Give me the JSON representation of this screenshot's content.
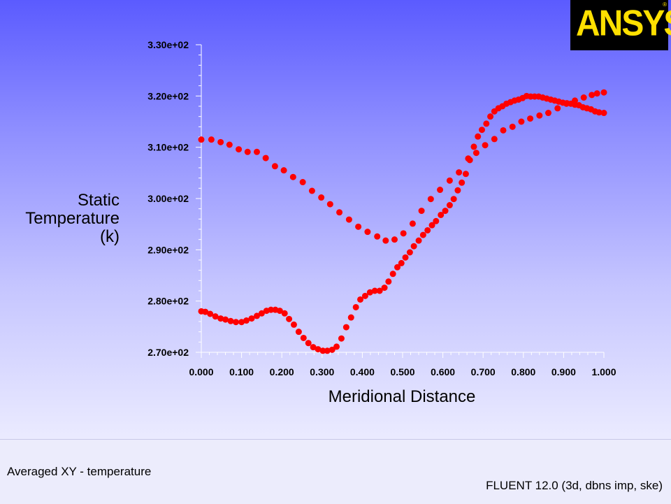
{
  "logo": {
    "text": "ANSYS",
    "reg": "®"
  },
  "footer": {
    "left_text": "Averaged XY - temperature",
    "right_text": "FLUENT 12.0 (3d, dbns imp, ske)"
  },
  "colors": {
    "marker": "#ff0000",
    "axis": "#ffffff",
    "logo_bg": "#000000",
    "logo_text": "#ffe000"
  },
  "chart_data": {
    "type": "scatter",
    "xlabel": "Meridional Distance",
    "ylabel_lines": [
      "Static",
      "Temperature",
      "(k)"
    ],
    "xlim": [
      0,
      1
    ],
    "ylim": [
      270,
      330
    ],
    "x_ticks": [
      "0.000",
      "0.100",
      "0.200",
      "0.300",
      "0.400",
      "0.500",
      "0.600",
      "0.700",
      "0.800",
      "0.900",
      "1.000"
    ],
    "y_ticks": [
      "2.70e+02",
      "2.80e+02",
      "2.90e+02",
      "3.00e+02",
      "3.10e+02",
      "3.20e+02",
      "3.30e+02"
    ],
    "grid": false,
    "series": [
      {
        "points": [
          [
            0.0,
            311.5
          ],
          [
            0.025,
            311.5
          ],
          [
            0.048,
            311.0
          ],
          [
            0.07,
            310.5
          ],
          [
            0.093,
            309.6
          ],
          [
            0.115,
            309.1
          ],
          [
            0.138,
            309.1
          ],
          [
            0.16,
            307.9
          ],
          [
            0.183,
            306.3
          ],
          [
            0.205,
            305.5
          ],
          [
            0.228,
            304.2
          ],
          [
            0.252,
            303.2
          ],
          [
            0.275,
            301.5
          ],
          [
            0.298,
            300.2
          ],
          [
            0.32,
            298.9
          ],
          [
            0.343,
            297.3
          ],
          [
            0.367,
            295.9
          ],
          [
            0.39,
            294.5
          ],
          [
            0.413,
            293.5
          ],
          [
            0.437,
            292.6
          ],
          [
            0.458,
            291.8
          ],
          [
            0.48,
            292.0
          ],
          [
            0.502,
            293.2
          ],
          [
            0.525,
            295.1
          ],
          [
            0.547,
            297.6
          ],
          [
            0.57,
            299.9
          ],
          [
            0.593,
            301.7
          ],
          [
            0.617,
            303.5
          ],
          [
            0.64,
            305.1
          ],
          [
            0.663,
            307.8
          ],
          [
            0.683,
            308.9
          ],
          [
            0.705,
            310.4
          ],
          [
            0.728,
            311.6
          ],
          [
            0.75,
            313.3
          ],
          [
            0.773,
            314.0
          ],
          [
            0.795,
            315.0
          ],
          [
            0.817,
            315.6
          ],
          [
            0.84,
            316.2
          ],
          [
            0.862,
            316.7
          ],
          [
            0.885,
            317.6
          ],
          [
            0.907,
            318.5
          ],
          [
            0.928,
            319.1
          ],
          [
            0.95,
            319.7
          ],
          [
            0.97,
            320.2
          ],
          [
            0.983,
            320.5
          ],
          [
            1.0,
            320.7
          ]
        ]
      },
      {
        "points": [
          [
            0.0,
            278.0
          ],
          [
            0.01,
            277.9
          ],
          [
            0.022,
            277.5
          ],
          [
            0.035,
            277.0
          ],
          [
            0.048,
            276.6
          ],
          [
            0.06,
            276.4
          ],
          [
            0.073,
            276.1
          ],
          [
            0.086,
            275.9
          ],
          [
            0.1,
            275.9
          ],
          [
            0.112,
            276.2
          ],
          [
            0.125,
            276.6
          ],
          [
            0.138,
            277.1
          ],
          [
            0.15,
            277.6
          ],
          [
            0.162,
            278.1
          ],
          [
            0.173,
            278.3
          ],
          [
            0.184,
            278.3
          ],
          [
            0.195,
            278.1
          ],
          [
            0.207,
            277.6
          ],
          [
            0.218,
            276.5
          ],
          [
            0.23,
            275.4
          ],
          [
            0.242,
            274.0
          ],
          [
            0.254,
            272.8
          ],
          [
            0.266,
            271.8
          ],
          [
            0.278,
            271.0
          ],
          [
            0.29,
            270.6
          ],
          [
            0.302,
            270.3
          ],
          [
            0.313,
            270.3
          ],
          [
            0.325,
            270.5
          ],
          [
            0.336,
            271.1
          ],
          [
            0.348,
            272.7
          ],
          [
            0.36,
            274.9
          ],
          [
            0.372,
            276.8
          ],
          [
            0.384,
            278.8
          ],
          [
            0.395,
            280.3
          ],
          [
            0.407,
            281.0
          ],
          [
            0.419,
            281.7
          ],
          [
            0.431,
            282.0
          ],
          [
            0.443,
            282.0
          ],
          [
            0.455,
            282.6
          ],
          [
            0.465,
            283.8
          ],
          [
            0.476,
            285.3
          ],
          [
            0.487,
            286.6
          ],
          [
            0.497,
            287.4
          ],
          [
            0.507,
            288.5
          ],
          [
            0.518,
            289.5
          ],
          [
            0.528,
            290.7
          ],
          [
            0.54,
            291.8
          ],
          [
            0.551,
            292.9
          ],
          [
            0.562,
            293.8
          ],
          [
            0.573,
            294.8
          ],
          [
            0.583,
            295.6
          ],
          [
            0.595,
            296.8
          ],
          [
            0.606,
            297.6
          ],
          [
            0.617,
            298.7
          ],
          [
            0.627,
            299.9
          ],
          [
            0.637,
            301.6
          ],
          [
            0.647,
            303.1
          ],
          [
            0.657,
            304.8
          ],
          [
            0.667,
            307.5
          ],
          [
            0.677,
            310.1
          ],
          [
            0.687,
            312.1
          ],
          [
            0.697,
            313.4
          ],
          [
            0.708,
            314.6
          ],
          [
            0.718,
            316.0
          ],
          [
            0.728,
            317.0
          ],
          [
            0.738,
            317.6
          ],
          [
            0.748,
            318.0
          ],
          [
            0.758,
            318.5
          ],
          [
            0.768,
            318.8
          ],
          [
            0.778,
            319.1
          ],
          [
            0.788,
            319.3
          ],
          [
            0.798,
            319.6
          ],
          [
            0.808,
            320.0
          ],
          [
            0.818,
            319.9
          ],
          [
            0.828,
            319.9
          ],
          [
            0.838,
            319.9
          ],
          [
            0.848,
            319.7
          ],
          [
            0.858,
            319.5
          ],
          [
            0.868,
            319.3
          ],
          [
            0.878,
            319.1
          ],
          [
            0.888,
            318.9
          ],
          [
            0.898,
            318.7
          ],
          [
            0.908,
            318.6
          ],
          [
            0.918,
            318.5
          ],
          [
            0.928,
            318.3
          ],
          [
            0.938,
            318.2
          ],
          [
            0.948,
            317.8
          ],
          [
            0.958,
            317.6
          ],
          [
            0.968,
            317.4
          ],
          [
            0.978,
            317.0
          ],
          [
            0.988,
            316.8
          ],
          [
            1.0,
            316.7
          ]
        ]
      }
    ]
  }
}
